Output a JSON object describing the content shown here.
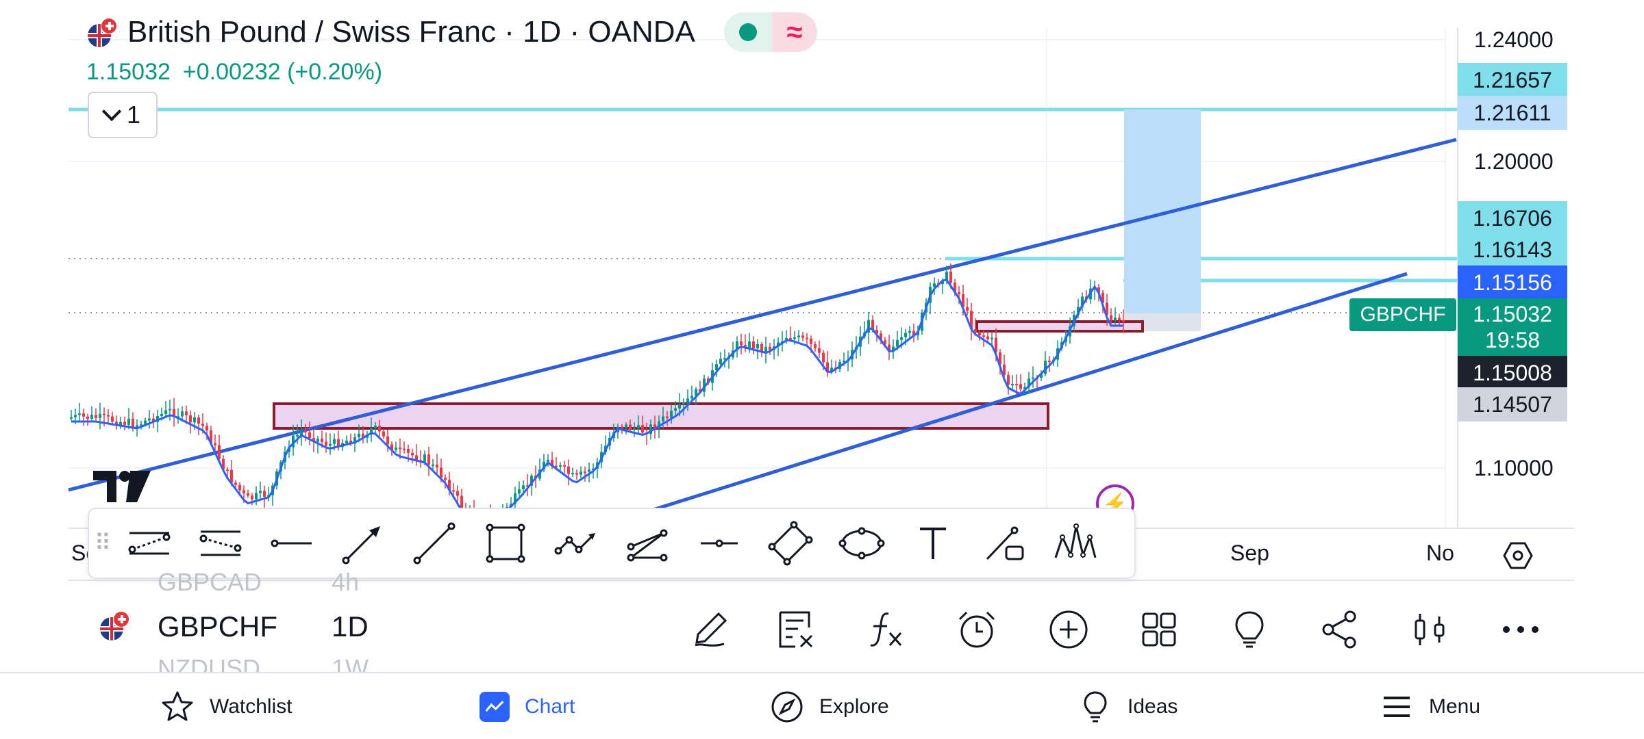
{
  "header": {
    "title": "British Pound / Swiss Franc · 1D · OANDA",
    "last": "1.15032",
    "change": "+0.00232 (+0.20%)",
    "collapse_count": "1"
  },
  "price_scale": {
    "ticks": [
      "1.24000",
      "1.20000",
      "1.10000"
    ],
    "tags": [
      "1.21657",
      "1.21611",
      "1.16706",
      "1.16143",
      "1.15156",
      "1.15032",
      "19:58",
      "1.15008",
      "1.14507"
    ],
    "symbol_tag": "GBPCHF"
  },
  "time_axis": {
    "labels": [
      "Se",
      "Sep",
      "No"
    ]
  },
  "drawing_tools": [
    "parallel-channel-tool",
    "regression-channel-tool",
    "horizontal-ray-tool",
    "arrow-tool",
    "trend-line-tool",
    "rectangle-tool",
    "path-tool",
    "polyline-tool",
    "horizontal-line-tool",
    "rotated-rectangle-tool",
    "ellipse-tool",
    "text-tool",
    "callout-tool",
    "pattern-tool"
  ],
  "symbol_row": {
    "prev_symbol": "GBPCAD",
    "prev_interval": "4h",
    "symbol": "GBPCHF",
    "interval": "1D",
    "next_symbol": "NZDUSD",
    "next_interval": "1W"
  },
  "nav": {
    "watchlist": "Watchlist",
    "chart": "Chart",
    "explore": "Explore",
    "ideas": "Ideas",
    "menu": "Menu"
  },
  "colors": {
    "up": "#089981",
    "down": "#f23645",
    "channel": "#2f5fd8",
    "ma": "#2962ff",
    "zone_fill": "#ecd3f0",
    "zone_border": "#8b1e2d",
    "level": "#80deea",
    "target": "#bbdefb"
  }
}
